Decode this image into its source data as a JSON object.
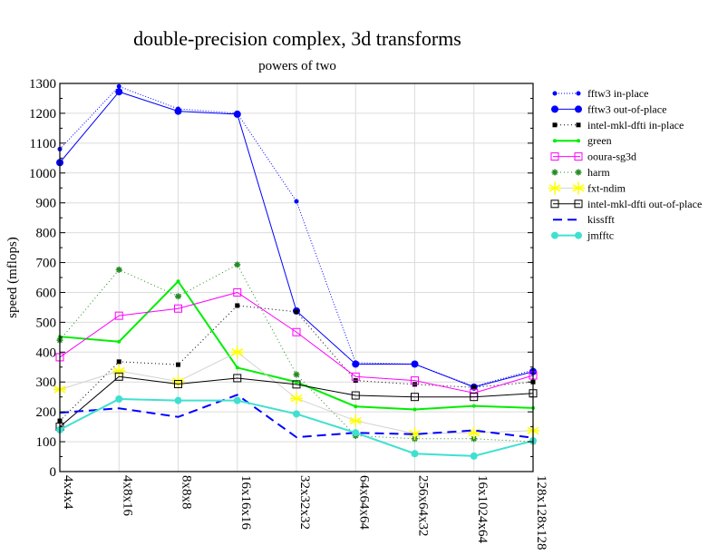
{
  "chart_data": {
    "type": "line",
    "title": "double-precision complex, 3d transforms",
    "subtitle": "powers of two",
    "xlabel": "",
    "ylabel": "speed (mflops)",
    "ylim": [
      0,
      1300
    ],
    "yticks": [
      0,
      100,
      200,
      300,
      400,
      500,
      600,
      700,
      800,
      900,
      1000,
      1100,
      1200,
      1300
    ],
    "grid": true,
    "legend_position": "right",
    "categories": [
      "4x4x4",
      "4x8x16",
      "8x8x8",
      "16x16x16",
      "32x32x32",
      "64x64x64",
      "256x64x32",
      "16x1024x64",
      "128x128x128"
    ],
    "series": [
      {
        "name": "fftw3 in-place",
        "color": "#0000ff",
        "dash": "1,2",
        "marker": "dot-small",
        "values": [
          1080,
          1290,
          1215,
          1200,
          905,
          365,
          360,
          285,
          340
        ]
      },
      {
        "name": "fftw3 out-of-place",
        "color": "#0000ff",
        "dash": "",
        "marker": "dot-large",
        "values": [
          1035,
          1272,
          1207,
          1197,
          538,
          360,
          360,
          283,
          335
        ]
      },
      {
        "name": "intel-mkl-dfti in-place",
        "color": "#000000",
        "dash": "1,3",
        "marker": "square-filled",
        "values": [
          170,
          368,
          358,
          556,
          535,
          305,
          292,
          282,
          300
        ]
      },
      {
        "name": "green",
        "color": "#00ee00",
        "dash": "",
        "marker": "dot-tiny",
        "width": 2,
        "values": [
          452,
          435,
          637,
          348,
          300,
          218,
          208,
          220,
          213
        ]
      },
      {
        "name": "ooura-sg3d",
        "color": "#ff00ff",
        "dash": "",
        "marker": "square-open",
        "values": [
          383,
          522,
          546,
          600,
          467,
          318,
          305,
          263,
          322
        ]
      },
      {
        "name": "harm",
        "color": "#228b22",
        "dash": "1,3",
        "marker": "asterisk",
        "values": [
          440,
          676,
          587,
          693,
          325,
          120,
          110,
          110,
          100
        ]
      },
      {
        "name": "fxt-ndim",
        "color": "#d3d3d3",
        "markerColor": "#ffff00",
        "dash": "",
        "marker": "star",
        "values": [
          275,
          337,
          302,
          400,
          245,
          170,
          127,
          130,
          137
        ]
      },
      {
        "name": "intel-mkl-dfti out-of-place",
        "color": "#000000",
        "dash": "",
        "marker": "square-open",
        "values": [
          150,
          318,
          293,
          313,
          292,
          255,
          250,
          250,
          262
        ]
      },
      {
        "name": "kissfft",
        "color": "#0000ff",
        "dash": "10,6",
        "marker": "none",
        "width": 2,
        "values": [
          197,
          212,
          183,
          257,
          115,
          130,
          125,
          138,
          113
        ]
      },
      {
        "name": "jmfftc",
        "color": "#40e0d0",
        "dash": "",
        "marker": "dot-large",
        "width": 2,
        "values": [
          140,
          243,
          238,
          238,
          193,
          130,
          60,
          52,
          103
        ]
      }
    ]
  }
}
